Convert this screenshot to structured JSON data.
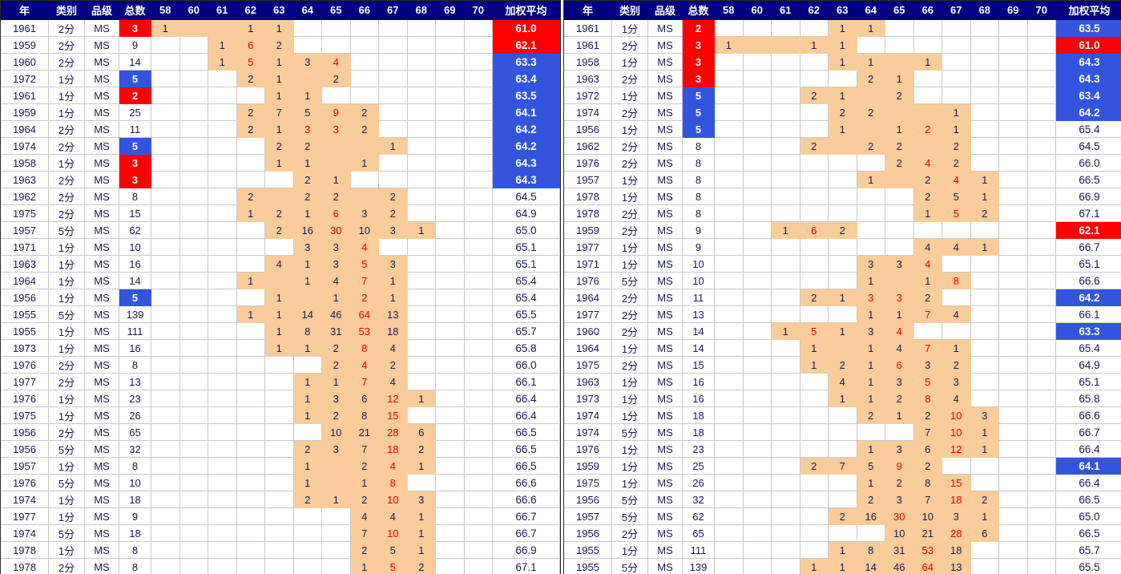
{
  "palette": {
    "header_bg": "#000080",
    "highlight_red": "#FF0000",
    "highlight_blue": "#3355DD",
    "range_fill": "#FACC9A",
    "gridline": "#C9C9C9",
    "ink": "#1A1A52",
    "count_red": "#E60000"
  },
  "columns": [
    "年",
    "类别",
    "品级",
    "总数",
    "58",
    "60",
    "61",
    "62",
    "63",
    "64",
    "65",
    "66",
    "67",
    "68",
    "69",
    "70",
    "加权平均"
  ],
  "grade_columns": [
    58,
    60,
    61,
    62,
    63,
    64,
    65,
    66,
    67,
    68,
    69,
    70
  ],
  "records": {
    "y1961c2": {
      "year": "1961",
      "cat": "2分",
      "grade": "MS",
      "total": "3",
      "total_hl": "red",
      "range": [
        58,
        63
      ],
      "counts": {
        "58": {
          "v": "1"
        },
        "62": {
          "v": "1"
        },
        "63": {
          "v": "1"
        }
      },
      "avg": "61.0",
      "avg_hl": "red"
    },
    "y1959c2": {
      "year": "1959",
      "cat": "2分",
      "grade": "MS",
      "total": "9",
      "total_hl": "",
      "range": [
        61,
        63
      ],
      "counts": {
        "61": {
          "v": "1"
        },
        "62": {
          "v": "6",
          "red": true
        },
        "63": {
          "v": "2"
        }
      },
      "avg": "62.1",
      "avg_hl": "red"
    },
    "y1960c2": {
      "year": "1960",
      "cat": "2分",
      "grade": "MS",
      "total": "14",
      "total_hl": "",
      "range": [
        61,
        65
      ],
      "counts": {
        "61": {
          "v": "1"
        },
        "62": {
          "v": "5",
          "red": true
        },
        "63": {
          "v": "1"
        },
        "64": {
          "v": "3"
        },
        "65": {
          "v": "4",
          "red": true
        }
      },
      "avg": "63.3",
      "avg_hl": "blue"
    },
    "y1972c1": {
      "year": "1972",
      "cat": "1分",
      "grade": "MS",
      "total": "5",
      "total_hl": "blue",
      "range": [
        62,
        65
      ],
      "counts": {
        "62": {
          "v": "2"
        },
        "63": {
          "v": "1"
        },
        "65": {
          "v": "2"
        }
      },
      "avg": "63.4",
      "avg_hl": "blue"
    },
    "y1961c1": {
      "year": "1961",
      "cat": "1分",
      "grade": "MS",
      "total": "2",
      "total_hl": "red",
      "range": [
        63,
        64
      ],
      "counts": {
        "63": {
          "v": "1"
        },
        "64": {
          "v": "1"
        }
      },
      "avg": "63.5",
      "avg_hl": "blue"
    },
    "y1959c1": {
      "year": "1959",
      "cat": "1分",
      "grade": "MS",
      "total": "25",
      "total_hl": "",
      "range": [
        62,
        66
      ],
      "counts": {
        "62": {
          "v": "2"
        },
        "63": {
          "v": "7"
        },
        "64": {
          "v": "5"
        },
        "65": {
          "v": "9",
          "red": true
        },
        "66": {
          "v": "2"
        }
      },
      "avg": "64.1",
      "avg_hl": "blue"
    },
    "y1964c2": {
      "year": "1964",
      "cat": "2分",
      "grade": "MS",
      "total": "11",
      "total_hl": "",
      "range": [
        62,
        66
      ],
      "counts": {
        "62": {
          "v": "2"
        },
        "63": {
          "v": "1"
        },
        "64": {
          "v": "3",
          "red": true
        },
        "65": {
          "v": "3",
          "red": true
        },
        "66": {
          "v": "2"
        }
      },
      "avg": "64.2",
      "avg_hl": "blue"
    },
    "y1974c2": {
      "year": "1974",
      "cat": "2分",
      "grade": "MS",
      "total": "5",
      "total_hl": "blue",
      "range": [
        63,
        67
      ],
      "counts": {
        "63": {
          "v": "2"
        },
        "64": {
          "v": "2"
        },
        "67": {
          "v": "1"
        }
      },
      "avg": "64.2",
      "avg_hl": "blue"
    },
    "y1958c1": {
      "year": "1958",
      "cat": "1分",
      "grade": "MS",
      "total": "3",
      "total_hl": "red",
      "range": [
        63,
        66
      ],
      "counts": {
        "63": {
          "v": "1"
        },
        "64": {
          "v": "1"
        },
        "66": {
          "v": "1"
        }
      },
      "avg": "64.3",
      "avg_hl": "blue"
    },
    "y1963c2": {
      "year": "1963",
      "cat": "2分",
      "grade": "MS",
      "total": "3",
      "total_hl": "red",
      "range": [
        64,
        65
      ],
      "counts": {
        "64": {
          "v": "2"
        },
        "65": {
          "v": "1"
        }
      },
      "avg": "64.3",
      "avg_hl": "blue"
    },
    "y1962c2": {
      "year": "1962",
      "cat": "2分",
      "grade": "MS",
      "total": "8",
      "total_hl": "",
      "range": [
        62,
        67
      ],
      "counts": {
        "62": {
          "v": "2"
        },
        "64": {
          "v": "2"
        },
        "65": {
          "v": "2"
        },
        "67": {
          "v": "2"
        }
      },
      "avg": "64.5",
      "avg_hl": ""
    },
    "y1975c2": {
      "year": "1975",
      "cat": "2分",
      "grade": "MS",
      "total": "15",
      "total_hl": "",
      "range": [
        62,
        67
      ],
      "counts": {
        "62": {
          "v": "1"
        },
        "63": {
          "v": "2"
        },
        "64": {
          "v": "1"
        },
        "65": {
          "v": "6",
          "red": true
        },
        "66": {
          "v": "3"
        },
        "67": {
          "v": "2"
        }
      },
      "avg": "64.9",
      "avg_hl": ""
    },
    "y1957c5": {
      "year": "1957",
      "cat": "5分",
      "grade": "MS",
      "total": "62",
      "total_hl": "",
      "range": [
        63,
        68
      ],
      "counts": {
        "63": {
          "v": "2"
        },
        "64": {
          "v": "16"
        },
        "65": {
          "v": "30",
          "red": true
        },
        "66": {
          "v": "10"
        },
        "67": {
          "v": "3"
        },
        "68": {
          "v": "1"
        }
      },
      "avg": "65.0",
      "avg_hl": ""
    },
    "y1971c1": {
      "year": "1971",
      "cat": "1分",
      "grade": "MS",
      "total": "10",
      "total_hl": "",
      "range": [
        64,
        66
      ],
      "counts": {
        "64": {
          "v": "3"
        },
        "65": {
          "v": "3"
        },
        "66": {
          "v": "4",
          "red": true
        }
      },
      "avg": "65.1",
      "avg_hl": ""
    },
    "y1963c1": {
      "year": "1963",
      "cat": "1分",
      "grade": "MS",
      "total": "16",
      "total_hl": "",
      "range": [
        63,
        67
      ],
      "counts": {
        "63": {
          "v": "4"
        },
        "64": {
          "v": "1"
        },
        "65": {
          "v": "3"
        },
        "66": {
          "v": "5",
          "red": true
        },
        "67": {
          "v": "3"
        }
      },
      "avg": "65.1",
      "avg_hl": ""
    },
    "y1964c1": {
      "year": "1964",
      "cat": "1分",
      "grade": "MS",
      "total": "14",
      "total_hl": "",
      "range": [
        62,
        67
      ],
      "counts": {
        "62": {
          "v": "1"
        },
        "64": {
          "v": "1"
        },
        "65": {
          "v": "4"
        },
        "66": {
          "v": "7",
          "red": true
        },
        "67": {
          "v": "1"
        }
      },
      "avg": "65.4",
      "avg_hl": ""
    },
    "y1956c1": {
      "year": "1956",
      "cat": "1分",
      "grade": "MS",
      "total": "5",
      "total_hl": "blue",
      "range": [
        63,
        67
      ],
      "counts": {
        "63": {
          "v": "1"
        },
        "65": {
          "v": "1"
        },
        "66": {
          "v": "2",
          "red": true
        },
        "67": {
          "v": "1"
        }
      },
      "avg": "65.4",
      "avg_hl": ""
    },
    "y1955c5": {
      "year": "1955",
      "cat": "5分",
      "grade": "MS",
      "total": "139",
      "total_hl": "",
      "range": [
        62,
        67
      ],
      "counts": {
        "62": {
          "v": "1"
        },
        "63": {
          "v": "1"
        },
        "64": {
          "v": "14"
        },
        "65": {
          "v": "46"
        },
        "66": {
          "v": "64",
          "red": true
        },
        "67": {
          "v": "13"
        }
      },
      "avg": "65.5",
      "avg_hl": ""
    },
    "y1955c1": {
      "year": "1955",
      "cat": "1分",
      "grade": "MS",
      "total": "111",
      "total_hl": "",
      "range": [
        63,
        67
      ],
      "counts": {
        "63": {
          "v": "1"
        },
        "64": {
          "v": "8"
        },
        "65": {
          "v": "31"
        },
        "66": {
          "v": "53",
          "red": true
        },
        "67": {
          "v": "18"
        }
      },
      "avg": "65.7",
      "avg_hl": ""
    },
    "y1973c1": {
      "year": "1973",
      "cat": "1分",
      "grade": "MS",
      "total": "16",
      "total_hl": "",
      "range": [
        63,
        67
      ],
      "counts": {
        "63": {
          "v": "1"
        },
        "64": {
          "v": "1"
        },
        "65": {
          "v": "2"
        },
        "66": {
          "v": "8",
          "red": true
        },
        "67": {
          "v": "4"
        }
      },
      "avg": "65.8",
      "avg_hl": ""
    },
    "y1976c2": {
      "year": "1976",
      "cat": "2分",
      "grade": "MS",
      "total": "8",
      "total_hl": "",
      "range": [
        65,
        67
      ],
      "counts": {
        "65": {
          "v": "2"
        },
        "66": {
          "v": "4",
          "red": true
        },
        "67": {
          "v": "2"
        }
      },
      "avg": "66.0",
      "avg_hl": ""
    },
    "y1977c2": {
      "year": "1977",
      "cat": "2分",
      "grade": "MS",
      "total": "13",
      "total_hl": "",
      "range": [
        64,
        67
      ],
      "counts": {
        "64": {
          "v": "1"
        },
        "65": {
          "v": "1"
        },
        "66": {
          "v": "7",
          "red": true
        },
        "67": {
          "v": "4"
        }
      },
      "avg": "66.1",
      "avg_hl": ""
    },
    "y1976c1": {
      "year": "1976",
      "cat": "1分",
      "grade": "MS",
      "total": "23",
      "total_hl": "",
      "range": [
        64,
        68
      ],
      "counts": {
        "64": {
          "v": "1"
        },
        "65": {
          "v": "3"
        },
        "66": {
          "v": "6"
        },
        "67": {
          "v": "12",
          "red": true
        },
        "68": {
          "v": "1"
        }
      },
      "avg": "66.4",
      "avg_hl": ""
    },
    "y1975c1": {
      "year": "1975",
      "cat": "1分",
      "grade": "MS",
      "total": "26",
      "total_hl": "",
      "range": [
        64,
        67
      ],
      "counts": {
        "64": {
          "v": "1"
        },
        "65": {
          "v": "2"
        },
        "66": {
          "v": "8"
        },
        "67": {
          "v": "15",
          "red": true
        }
      },
      "avg": "66.4",
      "avg_hl": ""
    },
    "y1956c2": {
      "year": "1956",
      "cat": "2分",
      "grade": "MS",
      "total": "65",
      "total_hl": "",
      "range": [
        65,
        68
      ],
      "counts": {
        "65": {
          "v": "10"
        },
        "66": {
          "v": "21"
        },
        "67": {
          "v": "28",
          "red": true
        },
        "68": {
          "v": "6"
        }
      },
      "avg": "66.5",
      "avg_hl": ""
    },
    "y1956c5": {
      "year": "1956",
      "cat": "5分",
      "grade": "MS",
      "total": "32",
      "total_hl": "",
      "range": [
        64,
        68
      ],
      "counts": {
        "64": {
          "v": "2"
        },
        "65": {
          "v": "3"
        },
        "66": {
          "v": "7"
        },
        "67": {
          "v": "18",
          "red": true
        },
        "68": {
          "v": "2"
        }
      },
      "avg": "66.5",
      "avg_hl": ""
    },
    "y1957c1": {
      "year": "1957",
      "cat": "1分",
      "grade": "MS",
      "total": "8",
      "total_hl": "",
      "range": [
        64,
        68
      ],
      "counts": {
        "64": {
          "v": "1"
        },
        "66": {
          "v": "2"
        },
        "67": {
          "v": "4",
          "red": true
        },
        "68": {
          "v": "1"
        }
      },
      "avg": "66.5",
      "avg_hl": ""
    },
    "y1976c5": {
      "year": "1976",
      "cat": "5分",
      "grade": "MS",
      "total": "10",
      "total_hl": "",
      "range": [
        64,
        67
      ],
      "counts": {
        "64": {
          "v": "1"
        },
        "66": {
          "v": "1"
        },
        "67": {
          "v": "8",
          "red": true
        }
      },
      "avg": "66.6",
      "avg_hl": ""
    },
    "y1974c1": {
      "year": "1974",
      "cat": "1分",
      "grade": "MS",
      "total": "18",
      "total_hl": "",
      "range": [
        64,
        68
      ],
      "counts": {
        "64": {
          "v": "2"
        },
        "65": {
          "v": "1"
        },
        "66": {
          "v": "2"
        },
        "67": {
          "v": "10",
          "red": true
        },
        "68": {
          "v": "3"
        }
      },
      "avg": "66.6",
      "avg_hl": ""
    },
    "y1977c1": {
      "year": "1977",
      "cat": "1分",
      "grade": "MS",
      "total": "9",
      "total_hl": "",
      "range": [
        66,
        68
      ],
      "counts": {
        "66": {
          "v": "4"
        },
        "67": {
          "v": "4"
        },
        "68": {
          "v": "1"
        }
      },
      "avg": "66.7",
      "avg_hl": ""
    },
    "y1974c5": {
      "year": "1974",
      "cat": "5分",
      "grade": "MS",
      "total": "18",
      "total_hl": "",
      "range": [
        66,
        68
      ],
      "counts": {
        "66": {
          "v": "7"
        },
        "67": {
          "v": "10",
          "red": true
        },
        "68": {
          "v": "1"
        }
      },
      "avg": "66.7",
      "avg_hl": ""
    },
    "y1978c1": {
      "year": "1978",
      "cat": "1分",
      "grade": "MS",
      "total": "8",
      "total_hl": "",
      "range": [
        66,
        68
      ],
      "counts": {
        "66": {
          "v": "2"
        },
        "67": {
          "v": "5"
        },
        "68": {
          "v": "1"
        }
      },
      "avg": "66.9",
      "avg_hl": ""
    },
    "y1978c2": {
      "year": "1978",
      "cat": "2分",
      "grade": "MS",
      "total": "8",
      "total_hl": "",
      "range": [
        66,
        68
      ],
      "counts": {
        "66": {
          "v": "1"
        },
        "67": {
          "v": "5",
          "red": true
        },
        "68": {
          "v": "2"
        }
      },
      "avg": "67.1",
      "avg_hl": ""
    }
  },
  "left_order": [
    "y1961c2",
    "y1959c2",
    "y1960c2",
    "y1972c1",
    "y1961c1",
    "y1959c1",
    "y1964c2",
    "y1974c2",
    "y1958c1",
    "y1963c2",
    "y1962c2",
    "y1975c2",
    "y1957c5",
    "y1971c1",
    "y1963c1",
    "y1964c1",
    "y1956c1",
    "y1955c5",
    "y1955c1",
    "y1973c1",
    "y1976c2",
    "y1977c2",
    "y1976c1",
    "y1975c1",
    "y1956c2",
    "y1956c5",
    "y1957c1",
    "y1976c5",
    "y1974c1",
    "y1977c1",
    "y1974c5",
    "y1978c1",
    "y1978c2"
  ],
  "right_order": [
    "y1961c1",
    "y1961c2",
    "y1958c1",
    "y1963c2",
    "y1972c1",
    "y1974c2",
    "y1956c1",
    "y1962c2",
    "y1976c2",
    "y1957c1",
    "y1978c1",
    "y1978c2",
    "y1959c2",
    "y1977c1",
    "y1971c1",
    "y1976c5",
    "y1964c2",
    "y1977c2",
    "y1960c2",
    "y1964c1",
    "y1975c2",
    "y1963c1",
    "y1973c1",
    "y1974c1",
    "y1974c5",
    "y1976c1",
    "y1959c1",
    "y1975c1",
    "y1956c5",
    "y1957c5",
    "y1956c2",
    "y1955c1",
    "y1955c5"
  ]
}
